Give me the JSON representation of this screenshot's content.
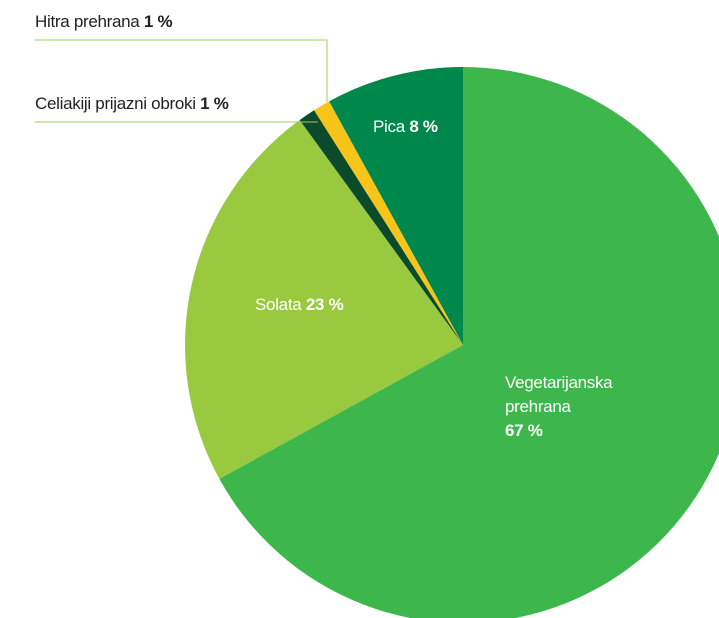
{
  "chart_data": {
    "type": "pie",
    "categories": [
      "Vegetarijanska prehrana",
      "Solata",
      "Celiakiji prijazni obroki",
      "Hitra prehrana",
      "Pica"
    ],
    "values": [
      67,
      23,
      1,
      1,
      8
    ],
    "value_labels": [
      "67 %",
      "23 %",
      "1 %",
      "1 %",
      "8 %"
    ],
    "colors": [
      "#3db64b",
      "#98c93f",
      "#0b4a2b",
      "#f7c51a",
      "#00874b"
    ]
  }
}
